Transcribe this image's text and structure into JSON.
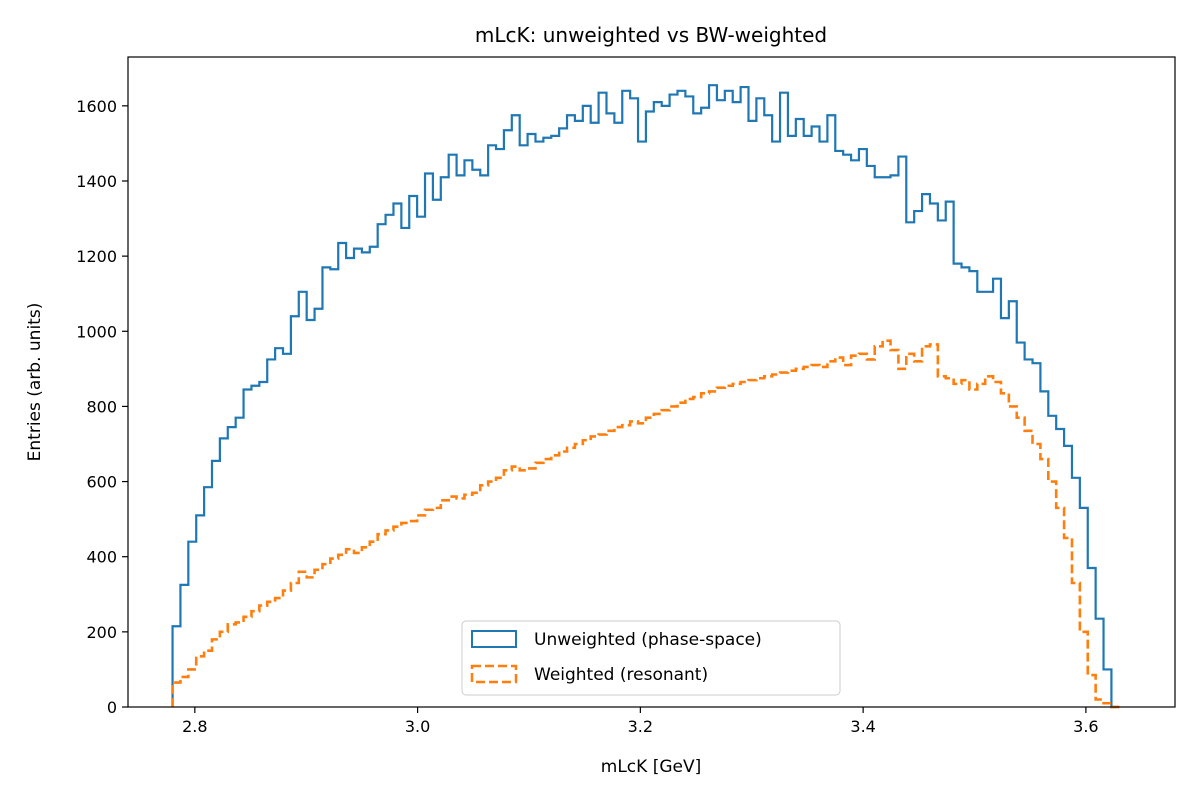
{
  "chart_data": {
    "type": "line",
    "title": "mLcK: unweighted vs BW-weighted",
    "xlabel": "mLcK [GeV]",
    "ylabel": "Entries (arb. units)",
    "xlim": [
      2.74,
      3.68
    ],
    "ylim": [
      0,
      1730
    ],
    "x_ticks": [
      2.8,
      3.0,
      3.2,
      3.4,
      3.6
    ],
    "x_tick_labels": [
      "2.8",
      "3.0",
      "3.2",
      "3.4",
      "3.6"
    ],
    "y_ticks": [
      0,
      200,
      400,
      600,
      800,
      1000,
      1200,
      1400,
      1600
    ],
    "y_tick_labels": [
      "0",
      "200",
      "400",
      "600",
      "800",
      "1000",
      "1200",
      "1400",
      "1600"
    ],
    "grid": false,
    "legend": "lower-center",
    "bin_range": [
      2.78,
      3.63
    ],
    "series": [
      {
        "name": "Unweighted (phase-space)",
        "style": "solid",
        "color": "#1f77b4",
        "values": [
          215,
          325,
          440,
          510,
          585,
          655,
          715,
          745,
          770,
          845,
          855,
          865,
          925,
          955,
          940,
          1040,
          1105,
          1030,
          1060,
          1170,
          1165,
          1235,
          1195,
          1220,
          1210,
          1225,
          1285,
          1310,
          1340,
          1275,
          1360,
          1305,
          1420,
          1350,
          1410,
          1470,
          1415,
          1455,
          1430,
          1415,
          1495,
          1485,
          1535,
          1575,
          1495,
          1525,
          1505,
          1515,
          1520,
          1540,
          1575,
          1560,
          1600,
          1555,
          1635,
          1580,
          1555,
          1640,
          1620,
          1505,
          1585,
          1610,
          1600,
          1630,
          1640,
          1625,
          1580,
          1595,
          1655,
          1615,
          1640,
          1610,
          1650,
          1560,
          1620,
          1575,
          1505,
          1635,
          1520,
          1565,
          1520,
          1545,
          1505,
          1575,
          1480,
          1470,
          1455,
          1485,
          1440,
          1410,
          1410,
          1415,
          1465,
          1290,
          1320,
          1365,
          1340,
          1295,
          1345,
          1180,
          1170,
          1160,
          1105,
          1105,
          1140,
          1035,
          1080,
          970,
          925,
          915,
          840,
          775,
          740,
          695,
          610,
          530,
          370,
          235,
          100,
          0
        ]
      },
      {
        "name": "Weighted (resonant)",
        "style": "dashed",
        "color": "#ff7f0e",
        "values": [
          65,
          80,
          100,
          135,
          150,
          180,
          200,
          220,
          225,
          240,
          255,
          270,
          280,
          290,
          310,
          330,
          360,
          345,
          365,
          380,
          395,
          405,
          420,
          410,
          425,
          440,
          460,
          470,
          480,
          490,
          495,
          510,
          525,
          530,
          550,
          560,
          555,
          565,
          570,
          590,
          600,
          610,
          630,
          640,
          630,
          635,
          650,
          660,
          670,
          680,
          690,
          700,
          710,
          720,
          725,
          735,
          745,
          750,
          760,
          755,
          770,
          780,
          790,
          800,
          810,
          820,
          825,
          835,
          840,
          850,
          855,
          860,
          865,
          870,
          875,
          880,
          885,
          890,
          895,
          900,
          905,
          910,
          905,
          920,
          930,
          910,
          935,
          940,
          925,
          960,
          975,
          950,
          900,
          940,
          920,
          960,
          965,
          880,
          875,
          860,
          870,
          845,
          860,
          880,
          865,
          835,
          800,
          770,
          735,
          700,
          660,
          600,
          530,
          450,
          330,
          200,
          85,
          20,
          10,
          0
        ]
      }
    ]
  }
}
